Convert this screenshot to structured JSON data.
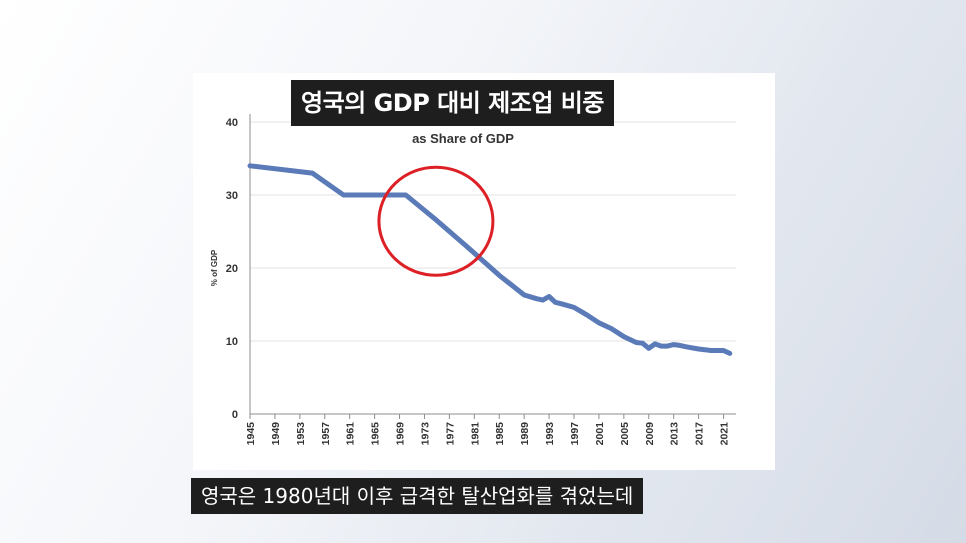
{
  "banner_title": "영국의 GDP 대비 제조업 비중",
  "caption": "영국은 1980년대 이후 급격한 탈산업화를 겪었는데",
  "colors": {
    "line": "#5b7ab8",
    "highlight_circle": "#dd1f26",
    "grid": "#e3e3e3",
    "axis": "#8c8c8c",
    "banner_bg": "#1e1e1e"
  },
  "chart_data": {
    "type": "line",
    "title": "",
    "subtitle": "as Share of GDP",
    "xlabel": "",
    "ylabel": "% of GDP",
    "xlim": [
      1945,
      2023
    ],
    "ylim": [
      0,
      40
    ],
    "yticks": [
      0,
      10,
      20,
      30,
      40
    ],
    "xticks": [
      1945,
      1949,
      1953,
      1957,
      1961,
      1965,
      1969,
      1973,
      1977,
      1981,
      1985,
      1989,
      1993,
      1997,
      2001,
      2005,
      2009,
      2013,
      2017,
      2021
    ],
    "grid": true,
    "legend": "none",
    "series": [
      {
        "name": "",
        "x": [
          1945,
          1955,
          1960,
          1970,
          1975,
          1980,
          1985,
          1989,
          1991,
          1992,
          1993,
          1994,
          1995,
          1997,
          1999,
          2001,
          2003,
          2005,
          2007,
          2008,
          2009,
          2010,
          2011,
          2012,
          2013,
          2014,
          2015,
          2017,
          2019,
          2021,
          2022
        ],
        "values": [
          34,
          33,
          30,
          30,
          26.5,
          22.8,
          19,
          16.3,
          15.8,
          15.6,
          16.1,
          15.3,
          15.1,
          14.6,
          13.6,
          12.5,
          11.7,
          10.6,
          9.8,
          9.7,
          9.0,
          9.6,
          9.3,
          9.3,
          9.5,
          9.4,
          9.2,
          8.9,
          8.7,
          8.7,
          8.3
        ]
      }
    ],
    "annotations": [
      {
        "type": "circle",
        "center": [
          1975,
          26
        ],
        "note": ""
      }
    ]
  }
}
